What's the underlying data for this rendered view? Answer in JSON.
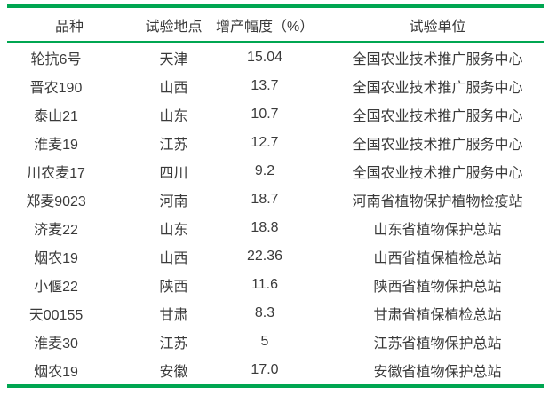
{
  "colors": {
    "rule_green": "#00a651",
    "text": "#3a3a3a"
  },
  "table": {
    "columns": [
      "品种",
      "试验地点",
      "增产幅度（%）",
      "试验单位"
    ],
    "rows": [
      [
        "轮抗6号",
        "天津",
        "15.04",
        "全国农业技术推广服务中心"
      ],
      [
        "晋农190",
        "山西",
        "13.7",
        "全国农业技术推广服务中心"
      ],
      [
        "泰山21",
        "山东",
        "10.7",
        "全国农业技术推广服务中心"
      ],
      [
        "淮麦19",
        "江苏",
        "12.7",
        "全国农业技术推广服务中心"
      ],
      [
        "川农麦17",
        "四川",
        "9.2",
        "全国农业技术推广服务中心"
      ],
      [
        "郑麦9023",
        "河南",
        "18.7",
        "河南省植物保护植物检疫站"
      ],
      [
        "济麦22",
        "山东",
        "18.8",
        "山东省植物保护总站"
      ],
      [
        "烟农19",
        "山西",
        "22.36",
        "山西省植保植检总站"
      ],
      [
        "小偃22",
        "陕西",
        "11.6",
        "陕西省植物保护总站"
      ],
      [
        "天00155",
        "甘肃",
        "8.3",
        "甘肃省植保植检总站"
      ],
      [
        "淮麦30",
        "江苏",
        "5",
        "江苏省植物保护总站"
      ],
      [
        "烟农19",
        "安徽",
        "17.0",
        "安徽省植物保护总站"
      ]
    ]
  }
}
